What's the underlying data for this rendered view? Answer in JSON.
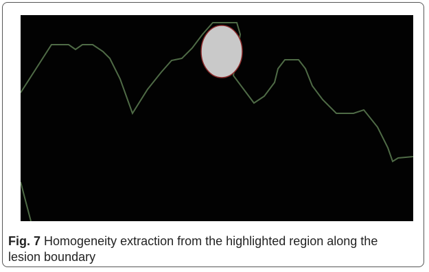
{
  "figure": {
    "label": "Fig. 7",
    "caption": "Homogeneity extraction from the highlighted region along the lesion boundary"
  }
}
